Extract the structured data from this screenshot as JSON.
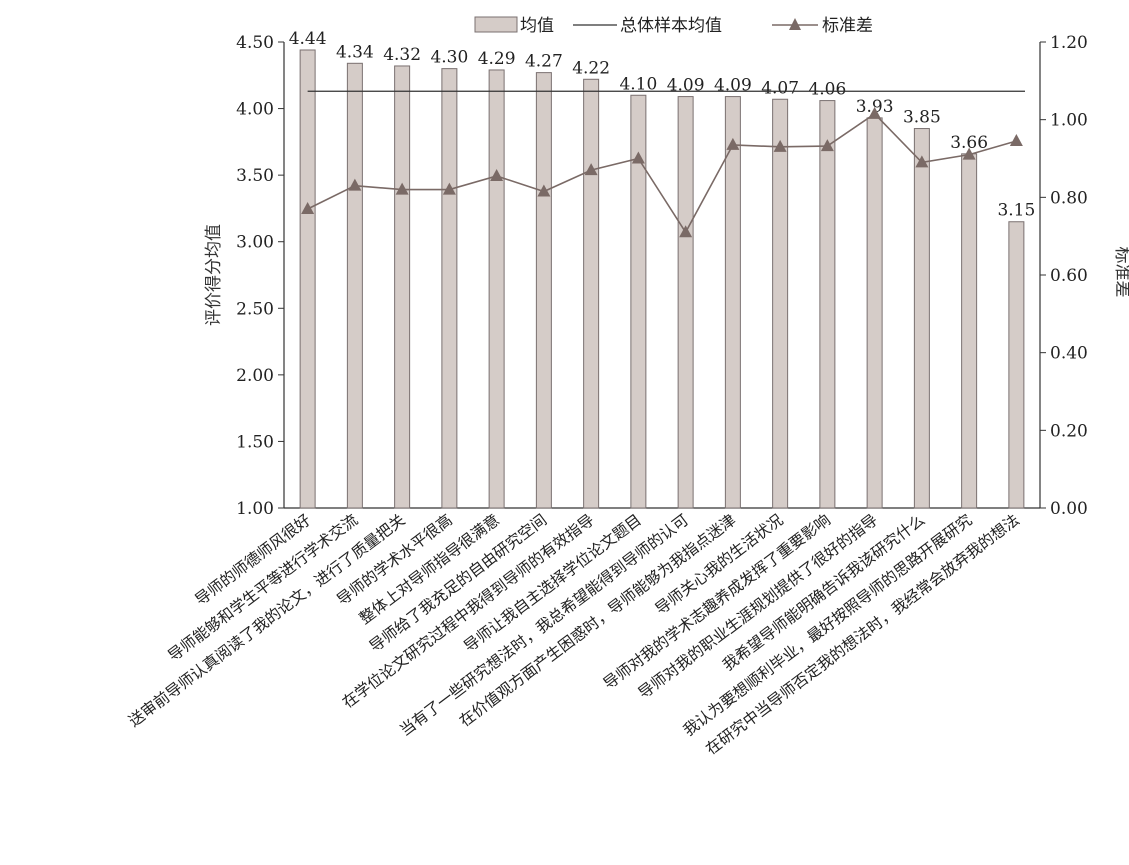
{
  "chart_data": {
    "type": "bar",
    "categories": [
      "导师的师德师风很好",
      "导师能够和学生平等进行学术交流",
      "送审前导师认真阅读了我的论文，进行了质量把关",
      "导师的学术水平很高",
      "整体上对导师指导很满意",
      "导师给了我充足的自由研究空间",
      "在学位论文研究过程中我得到导师的有效指导",
      "导师让我自主选择学位论文题目",
      "当有了一些研究想法时，我总希望能得到导师的认可",
      "在价值观方面产生困惑时，导师能够为我指点迷津",
      "导师关心我的生活状况",
      "导师对我的学术志趣养成发挥了重要影响",
      "导师对我的职业生涯规划提供了很好的指导",
      "我希望导师能明确告诉我该研究什么",
      "我认为要想顺利毕业，最好按照导师的思路开展研究",
      "在研究中当导师否定我的想法时，我经常会放弃我的想法"
    ],
    "series": [
      {
        "name": "均值",
        "type": "bar",
        "axis": "left",
        "values": [
          4.44,
          4.34,
          4.32,
          4.3,
          4.29,
          4.27,
          4.22,
          4.1,
          4.09,
          4.09,
          4.07,
          4.06,
          3.93,
          3.85,
          3.66,
          3.15
        ],
        "data_labels": [
          "4.44",
          "4.34",
          "4.32",
          "4.30",
          "4.29",
          "4.27",
          "4.22",
          "4.10",
          "4.09",
          "4.09",
          "4.07",
          "4.06",
          "3.93",
          "3.85",
          "3.66",
          "3.15"
        ]
      },
      {
        "name": "总体样本均值",
        "type": "line",
        "axis": "left",
        "value": 4.13
      },
      {
        "name": "标准差",
        "type": "line-marker",
        "axis": "right",
        "values": [
          0.77,
          0.83,
          0.82,
          0.82,
          0.855,
          0.815,
          0.87,
          0.9,
          0.71,
          0.935,
          0.93,
          0.932,
          1.015,
          0.89,
          0.91,
          0.945
        ]
      }
    ],
    "ylabel": "评价得分均值",
    "y2label": "标准差",
    "ylim": [
      1.0,
      4.5
    ],
    "y2lim": [
      0.0,
      1.2
    ],
    "yticks": [
      "1.00",
      "1.50",
      "2.00",
      "2.50",
      "3.00",
      "3.50",
      "4.00",
      "4.50"
    ],
    "y2ticks": [
      "0.00",
      "0.20",
      "0.40",
      "0.60",
      "0.80",
      "1.00",
      "1.20"
    ],
    "legend_position": "top",
    "grid": false,
    "colors": {
      "bar_fill": "#d5ccc8",
      "bar_stroke": "#7a7070",
      "mean_line": "#333333",
      "std_line": "#7a6a66",
      "std_marker": "#7a6a66"
    }
  }
}
